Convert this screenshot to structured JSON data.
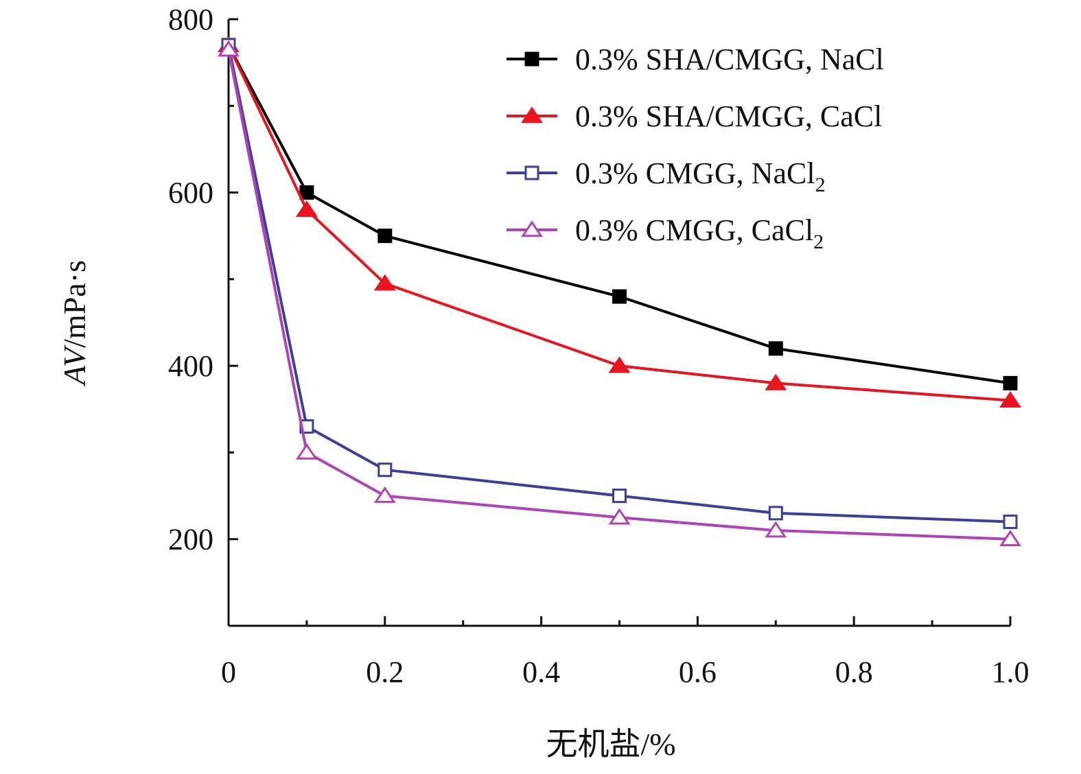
{
  "chart_data": {
    "type": "line",
    "xlabel": "无机盐/%",
    "ylabel_italic": "AV",
    "ylabel_unit": "/mPa·s",
    "x_ticks": [
      "0",
      "0.2",
      "0.4",
      "0.6",
      "0.8",
      "1.0"
    ],
    "y_ticks": [
      "200",
      "400",
      "600",
      "800"
    ],
    "xlim": [
      0,
      1.0
    ],
    "ylim": [
      100,
      800
    ],
    "grid": false,
    "legend_position": "top-right",
    "x": [
      0,
      0.1,
      0.2,
      0.5,
      0.7,
      1.0
    ],
    "series": [
      {
        "name": "0.3% SHA/CMGG, NaCl",
        "name_sub": "",
        "color": "#000000",
        "marker": "square-filled",
        "values": [
          770,
          600,
          550,
          480,
          420,
          380
        ]
      },
      {
        "name": "0.3% SHA/CMGG, CaCl",
        "name_sub": "",
        "color": "#e8141e",
        "marker": "triangle-filled",
        "values": [
          770,
          580,
          495,
          400,
          380,
          360
        ]
      },
      {
        "name": "0.3% CMGG, NaCl",
        "name_sub": "2",
        "color": "#3a3f9a",
        "marker": "square-open",
        "values": [
          770,
          330,
          280,
          250,
          230,
          220
        ]
      },
      {
        "name": "0.3% CMGG, CaCl",
        "name_sub": "2",
        "color": "#b042b8",
        "marker": "triangle-open",
        "values": [
          765,
          300,
          250,
          225,
          210,
          200
        ]
      }
    ]
  }
}
